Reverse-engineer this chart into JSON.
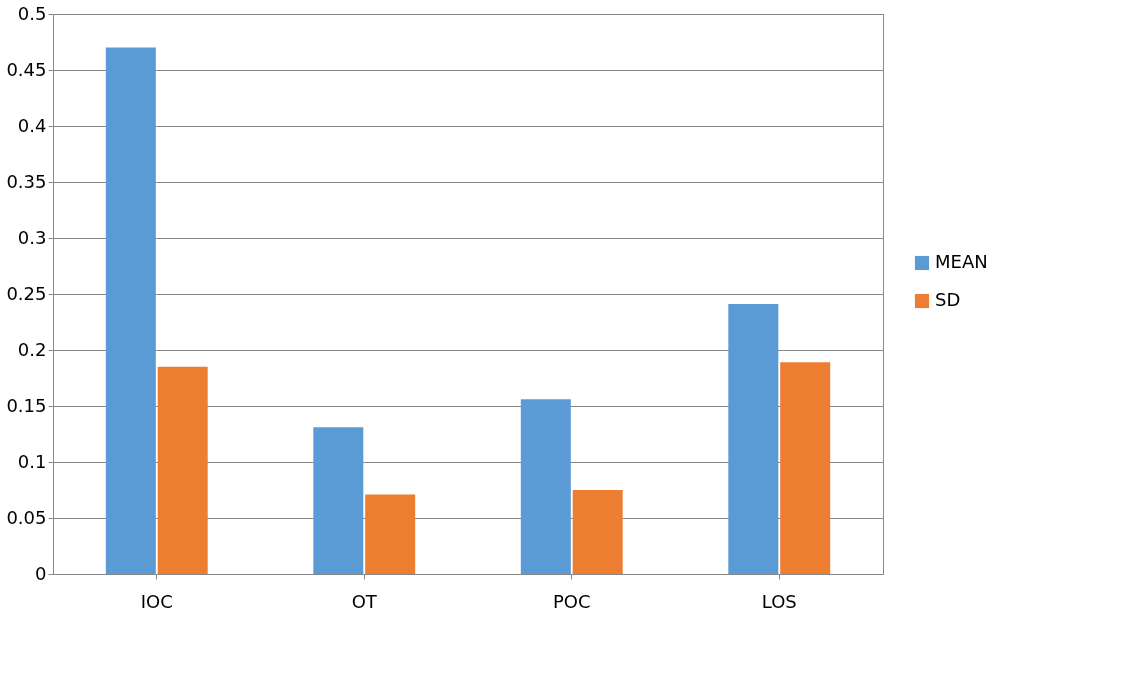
{
  "chart_data": {
    "type": "bar",
    "categories": [
      "IOC",
      "OT",
      "POC",
      "LOS"
    ],
    "series": [
      {
        "name": "MEAN",
        "color": "#5b9bd5",
        "values": [
          0.47,
          0.131,
          0.156,
          0.241
        ]
      },
      {
        "name": "SD",
        "color": "#ed7d31",
        "values": [
          0.185,
          0.071,
          0.075,
          0.189
        ]
      }
    ],
    "ylim": [
      0,
      0.5
    ],
    "yticks": [
      0,
      0.05,
      0.1,
      0.15,
      0.2,
      0.25,
      0.3,
      0.35,
      0.4,
      0.45,
      0.5
    ],
    "grid": "y",
    "legend": "right"
  }
}
